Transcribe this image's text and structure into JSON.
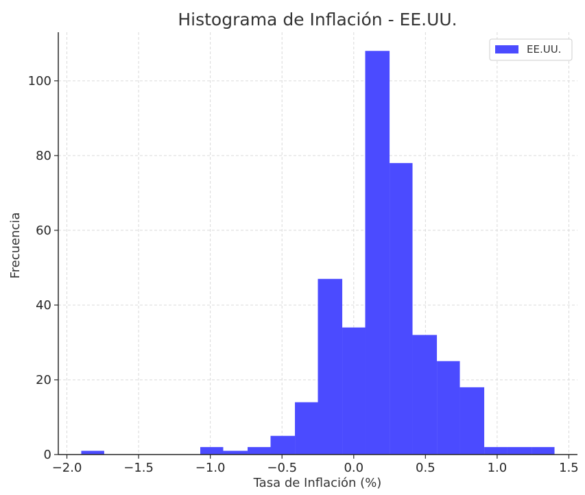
{
  "chart_data": {
    "type": "bar",
    "title": "Histograma de Inflación - EE.UU.",
    "xlabel": "Tasa de Inflación (%)",
    "ylabel": "Frecuencia",
    "xlim": [
      -2.06,
      1.56
    ],
    "ylim": [
      0,
      113
    ],
    "x_ticks": [
      -2.0,
      -1.5,
      -1.0,
      -0.5,
      0.0,
      0.5,
      1.0,
      1.5
    ],
    "x_tick_labels": [
      "−2.0",
      "−1.5",
      "−1.0",
      "−0.5",
      "0.0",
      "0.5",
      "1.0",
      "1.5"
    ],
    "y_ticks": [
      0,
      20,
      40,
      60,
      80,
      100
    ],
    "y_tick_labels": [
      "0",
      "20",
      "40",
      "60",
      "80",
      "100"
    ],
    "grid": true,
    "legend": {
      "placement": "top-right",
      "entries": [
        "EE.UU."
      ]
    },
    "series": [
      {
        "name": "EE.UU.",
        "color": "#4b4bff",
        "bins": [
          {
            "x0": -1.9,
            "x1": -1.74,
            "count": 1
          },
          {
            "x0": -1.74,
            "x1": -1.57,
            "count": 0
          },
          {
            "x0": -1.57,
            "x1": -1.4,
            "count": 0
          },
          {
            "x0": -1.4,
            "x1": -1.24,
            "count": 0
          },
          {
            "x0": -1.24,
            "x1": -1.07,
            "count": 0
          },
          {
            "x0": -1.07,
            "x1": -0.91,
            "count": 2
          },
          {
            "x0": -0.91,
            "x1": -0.74,
            "count": 1
          },
          {
            "x0": -0.74,
            "x1": -0.58,
            "count": 2
          },
          {
            "x0": -0.58,
            "x1": -0.41,
            "count": 5
          },
          {
            "x0": -0.41,
            "x1": -0.25,
            "count": 14
          },
          {
            "x0": -0.25,
            "x1": -0.08,
            "count": 47
          },
          {
            "x0": -0.08,
            "x1": 0.08,
            "count": 34
          },
          {
            "x0": 0.08,
            "x1": 0.25,
            "count": 108
          },
          {
            "x0": 0.25,
            "x1": 0.41,
            "count": 78
          },
          {
            "x0": 0.41,
            "x1": 0.58,
            "count": 32
          },
          {
            "x0": 0.58,
            "x1": 0.74,
            "count": 25
          },
          {
            "x0": 0.74,
            "x1": 0.91,
            "count": 18
          },
          {
            "x0": 0.91,
            "x1": 1.07,
            "count": 2
          },
          {
            "x0": 1.07,
            "x1": 1.24,
            "count": 2
          },
          {
            "x0": 1.24,
            "x1": 1.4,
            "count": 2
          }
        ]
      }
    ]
  }
}
